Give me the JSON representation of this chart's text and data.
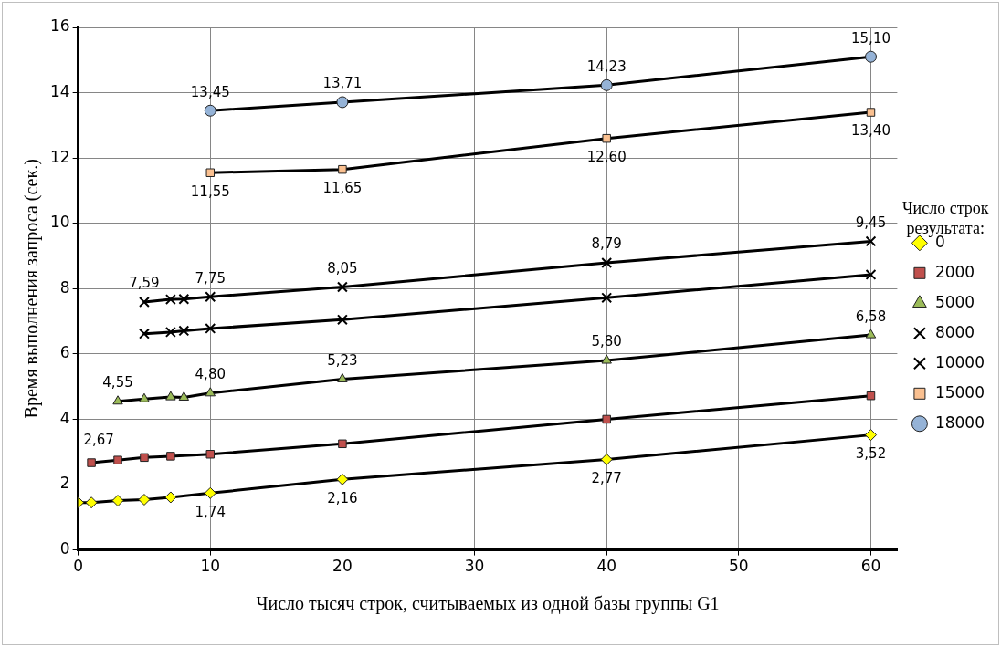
{
  "chart_data": {
    "type": "line",
    "xlabel": "Число тысяч строк, считываемых из одной базы группы G1",
    "ylabel": "Время выполнения запроса (сек.)",
    "legend_title": "Число строк результата:",
    "legend": "right",
    "grid": true,
    "xlim": [
      0,
      62
    ],
    "xticks": [
      0,
      10,
      20,
      30,
      40,
      50,
      60
    ],
    "ylim": [
      0,
      16
    ],
    "yticks": [
      0,
      2,
      4,
      6,
      8,
      10,
      12,
      14,
      16
    ],
    "series": [
      {
        "name": "0",
        "color": "#ffff00",
        "marker": "diamond",
        "x": [
          0,
          1,
          3,
          5,
          7,
          10,
          20,
          40,
          60
        ],
        "values": [
          1.45,
          1.45,
          1.51,
          1.54,
          1.61,
          1.74,
          2.16,
          2.77,
          3.52
        ],
        "value_labels": [
          null,
          null,
          null,
          null,
          null,
          "1,74",
          "2,16",
          "2,77",
          "3,52"
        ]
      },
      {
        "name": "2000",
        "color": "#c0504d",
        "marker": "square",
        "x": [
          1,
          3,
          5,
          7,
          10,
          20,
          40,
          60
        ],
        "values": [
          2.67,
          2.75,
          2.83,
          2.87,
          2.93,
          3.25,
          4.0,
          4.72
        ],
        "value_labels": [
          "2,67",
          null,
          null,
          null,
          null,
          null,
          null,
          null
        ]
      },
      {
        "name": "5000",
        "color": "#9bbb59",
        "marker": "triangle",
        "x": [
          3,
          5,
          7,
          8,
          10,
          20,
          40,
          60
        ],
        "values": [
          4.55,
          4.62,
          4.68,
          4.67,
          4.8,
          5.23,
          5.8,
          6.58
        ],
        "value_labels": [
          "4,55",
          null,
          null,
          null,
          "4,80",
          "5,23",
          "5,80",
          "6,58"
        ]
      },
      {
        "name": "8000",
        "color": "#000000",
        "marker": "cross",
        "x": [
          5,
          7,
          8,
          10,
          20,
          40,
          60
        ],
        "values": [
          6.62,
          6.67,
          6.71,
          6.78,
          7.05,
          7.72,
          8.43
        ]
      },
      {
        "name": "10000",
        "color": "#000000",
        "marker": "cross",
        "x": [
          5,
          7,
          8,
          10,
          20,
          40,
          60
        ],
        "values": [
          7.59,
          7.67,
          7.68,
          7.75,
          8.05,
          8.79,
          9.45
        ],
        "value_labels": [
          "7,59",
          null,
          null,
          "7,75",
          "8,05",
          "8,79",
          "9,45"
        ]
      },
      {
        "name": "15000",
        "color": "#fac090",
        "marker": "square",
        "x": [
          10,
          20,
          40,
          60
        ],
        "values": [
          11.55,
          11.65,
          12.6,
          13.4
        ],
        "value_labels": [
          "11,55",
          "11,65",
          "12,60",
          "13,40"
        ]
      },
      {
        "name": "18000",
        "color": "#95b3d7",
        "marker": "circle",
        "x": [
          10,
          20,
          40,
          60
        ],
        "values": [
          13.45,
          13.71,
          14.23,
          15.1
        ],
        "value_labels": [
          "13,45",
          "13,71",
          "14,23",
          "15,10"
        ]
      }
    ]
  }
}
